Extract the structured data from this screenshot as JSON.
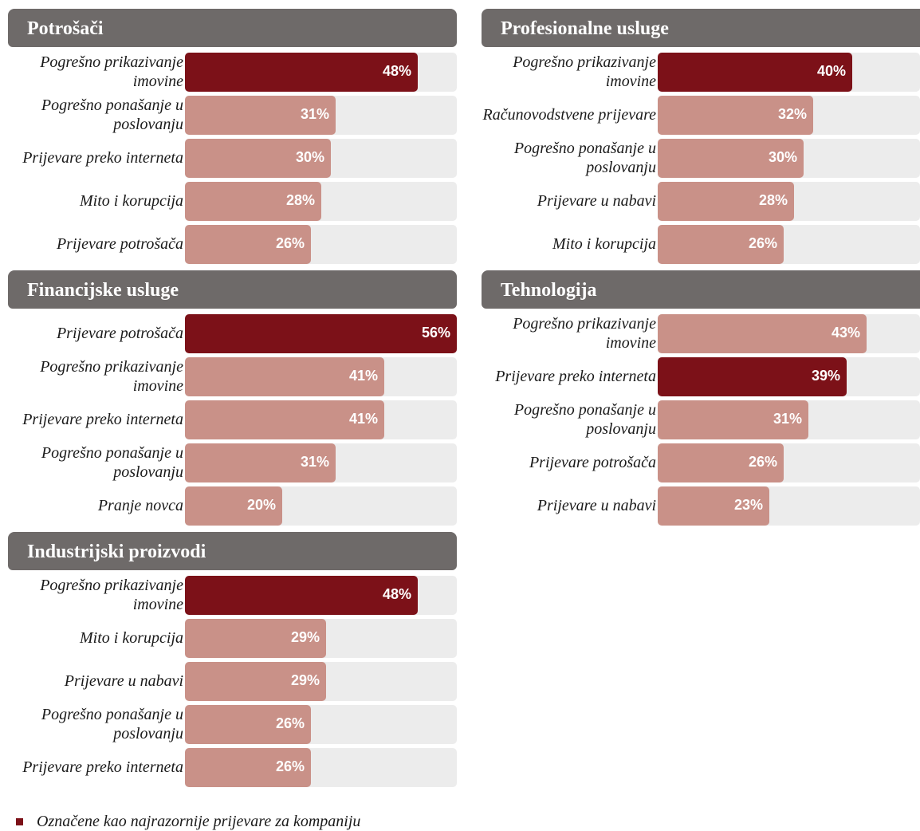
{
  "chart_data": [
    {
      "type": "bar",
      "title": "Potrošači",
      "categories": [
        "Pogrešno prikazivanje imovine",
        "Pogrešno ponašanje u poslovanju",
        "Prijevare preko interneta",
        "Mito i korupcija",
        "Prijevare potrošača"
      ],
      "values": [
        48,
        31,
        30,
        28,
        26
      ],
      "value_labels": [
        "48%",
        "31%",
        "30%",
        "28%",
        "26%"
      ],
      "highlighted": [
        true,
        false,
        false,
        false,
        false
      ],
      "xlim": [
        0,
        56
      ]
    },
    {
      "type": "bar",
      "title": "Profesionalne usluge",
      "categories": [
        "Pogrešno prikazivanje imovine",
        "Računovodstvene prijevare",
        "Pogrešno ponašanje u poslovanju",
        "Prijevare u nabavi",
        "Mito i korupcija"
      ],
      "values": [
        40,
        32,
        30,
        28,
        26
      ],
      "value_labels": [
        "40%",
        "32%",
        "30%",
        "28%",
        "26%"
      ],
      "highlighted": [
        true,
        false,
        false,
        false,
        false
      ],
      "xlim": [
        0,
        56
      ]
    },
    {
      "type": "bar",
      "title": "Financijske usluge",
      "categories": [
        "Prijevare potrošača",
        "Pogrešno prikazivanje imovine",
        "Prijevare preko interneta",
        "Pogrešno ponašanje u poslovanju",
        "Pranje novca"
      ],
      "values": [
        56,
        41,
        41,
        31,
        20
      ],
      "value_labels": [
        "56%",
        "41%",
        "41%",
        "31%",
        "20%"
      ],
      "highlighted": [
        true,
        false,
        false,
        false,
        false
      ],
      "xlim": [
        0,
        56
      ]
    },
    {
      "type": "bar",
      "title": "Tehnologija",
      "categories": [
        "Pogrešno prikazivanje imovine",
        "Prijevare preko interneta",
        "Pogrešno ponašanje u poslovanju",
        "Prijevare potrošača",
        "Prijevare u nabavi"
      ],
      "values": [
        43,
        39,
        31,
        26,
        23
      ],
      "value_labels": [
        "43%",
        "39%",
        "31%",
        "26%",
        "23%"
      ],
      "highlighted": [
        false,
        true,
        false,
        false,
        false
      ],
      "xlim": [
        0,
        56
      ]
    },
    {
      "type": "bar",
      "title": "Industrijski proizvodi",
      "categories": [
        "Pogrešno prikazivanje imovine",
        "Mito i korupcija",
        "Prijevare u nabavi",
        "Pogrešno ponašanje u poslovanju",
        "Prijevare preko interneta"
      ],
      "values": [
        48,
        29,
        29,
        26,
        26
      ],
      "value_labels": [
        "48%",
        "29%",
        "29%",
        "26%",
        "26%"
      ],
      "highlighted": [
        true,
        false,
        false,
        false,
        false
      ],
      "xlim": [
        0,
        56
      ]
    }
  ],
  "legend": {
    "label": "Označene kao najrazornije prijevare za kompaniju",
    "color": "#7c1118"
  },
  "colors": {
    "header_bg": "#6e6a69",
    "bar_highlight": "#7c1118",
    "bar_normal": "#c99188",
    "track": "#ececec"
  }
}
